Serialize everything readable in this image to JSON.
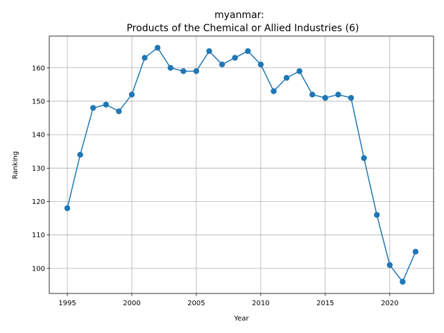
{
  "chart_data": {
    "type": "line",
    "title": "myanmar:",
    "subtitle": "Products of the Chemical or Allied Industries (6)",
    "xlabel": "Year",
    "ylabel": "Ranking",
    "xlim": [
      1993.6,
      2023.4
    ],
    "ylim": [
      92.5,
      169.5
    ],
    "xticks": [
      1995,
      2000,
      2005,
      2010,
      2015,
      2020
    ],
    "yticks": [
      100,
      110,
      120,
      130,
      140,
      150,
      160
    ],
    "grid": true,
    "color": "#1f77b4",
    "series": [
      {
        "x": [
          1995,
          1996,
          1997,
          1998,
          1999,
          2000,
          2001,
          2002,
          2003,
          2004,
          2005,
          2006,
          2007,
          2008,
          2009,
          2010,
          2011,
          2012,
          2013,
          2014,
          2015,
          2016,
          2017,
          2018,
          2019,
          2020,
          2021,
          2022
        ],
        "values": [
          118,
          134,
          148,
          149,
          147,
          152,
          163,
          166,
          160,
          159,
          159,
          165,
          161,
          163,
          165,
          161,
          153,
          157,
          159,
          152,
          151,
          152,
          151,
          133,
          116,
          101,
          96,
          105
        ]
      }
    ]
  }
}
